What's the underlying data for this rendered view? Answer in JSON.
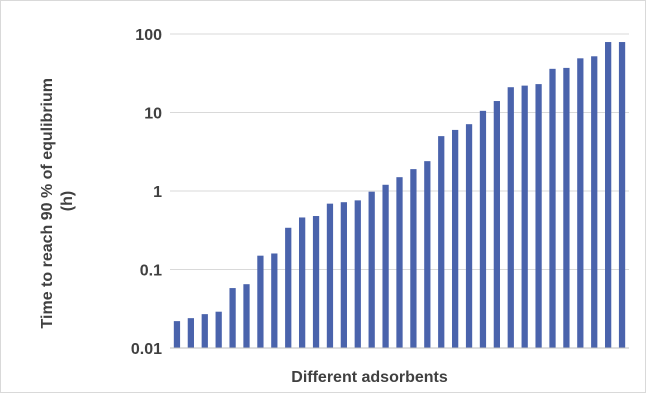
{
  "chart_data": {
    "type": "bar",
    "title": "",
    "xlabel": "Different adsorbents",
    "ylabel_lines": [
      "Time to reach 90 % of equlibrium",
      "(h)"
    ],
    "yscale": "log",
    "ylim": [
      0.01,
      100
    ],
    "yticks": [
      "100",
      "10",
      "1",
      "0.1",
      "0.01"
    ],
    "ytick_values": [
      100,
      10,
      1,
      0.1,
      0.01
    ],
    "grid": true,
    "bar_color": "#4a63ac",
    "values": [
      0.022,
      0.024,
      0.027,
      0.029,
      0.058,
      0.065,
      0.15,
      0.16,
      0.34,
      0.46,
      0.48,
      0.69,
      0.72,
      0.76,
      0.98,
      1.2,
      1.5,
      1.9,
      2.4,
      5.0,
      6.0,
      7.1,
      10.5,
      14,
      21,
      22,
      23,
      36,
      37,
      49,
      52,
      79,
      79
    ]
  }
}
